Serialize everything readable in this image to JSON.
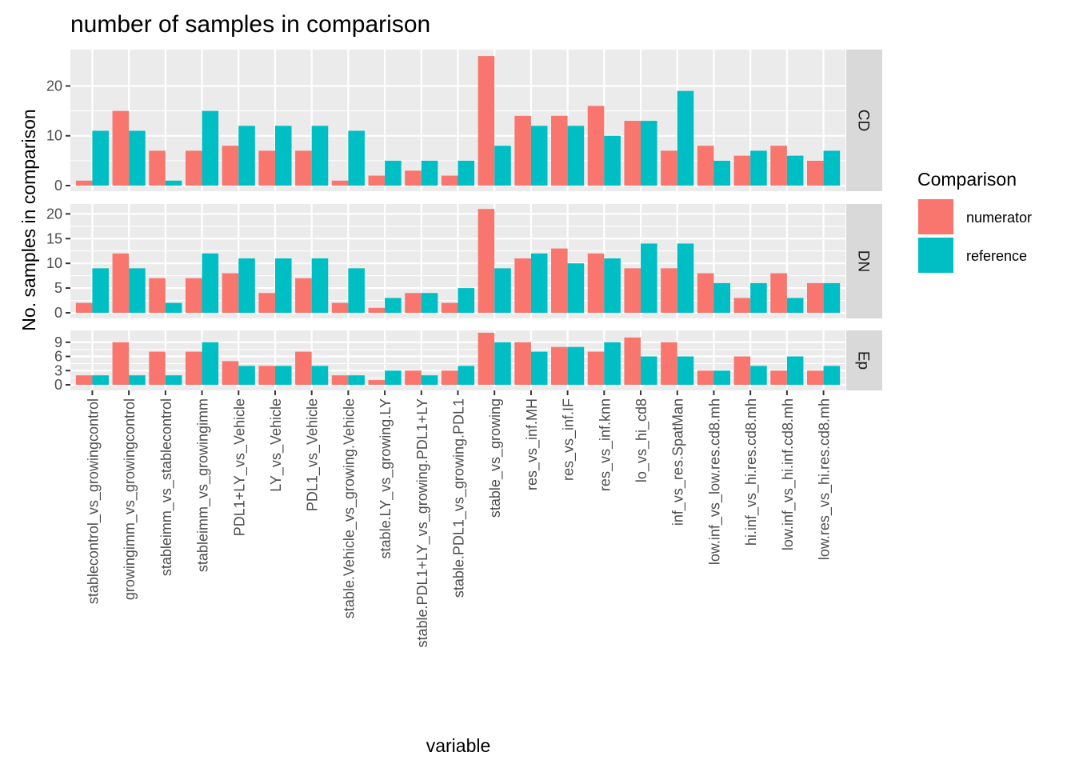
{
  "chart_data": {
    "type": "bar",
    "title": "number of samples in comparison",
    "xlabel": "variable",
    "ylabel": "No. samples in comparison",
    "legend": {
      "title": "Comparison",
      "placement": "right",
      "entries": [
        {
          "name": "numerator",
          "color": "#F8766D"
        },
        {
          "name": "reference",
          "color": "#00BFC4"
        }
      ]
    },
    "categories": [
      "stablecontrol_vs_growingcontrol",
      "growingimm_vs_growingcontrol",
      "stableimm_vs_stablecontrol",
      "stableimm_vs_growingimm",
      "PDL1+LY_vs_Vehicle",
      "LY_vs_Vehicle",
      "PDL1_vs_Vehicle",
      "stable.Vehicle_vs_growing.Vehicle",
      "stable.LY_vs_growing.LY",
      "stable.PDL1+LY_vs_growing.PDL1+LY",
      "stable.PDL1_vs_growing.PDL1",
      "stable_vs_growing",
      "res_vs_inf.MH",
      "res_vs_inf.IF",
      "res_vs_inf.knn",
      "lo_vs_hi_cd8",
      "inf_vs_res.SpatMan",
      "low.inf_vs_low.res.cd8.mh",
      "hi.inf_vs_hi.res.cd8.mh",
      "low.inf_vs_hi.inf.cd8.mh",
      "low.res_vs_hi.res.cd8.mh"
    ],
    "panels": [
      {
        "strip": "CD",
        "ylim": [
          0,
          27.3
        ],
        "yticks": [
          0,
          10,
          20
        ],
        "series": [
          {
            "name": "numerator",
            "values": [
              1,
              15,
              7,
              7,
              8,
              7,
              7,
              1,
              2,
              3,
              2,
              26,
              14,
              14,
              16,
              13,
              7,
              8,
              6,
              8,
              5
            ]
          },
          {
            "name": "reference",
            "values": [
              11,
              11,
              1,
              15,
              12,
              12,
              12,
              11,
              5,
              5,
              5,
              8,
              12,
              12,
              10,
              13,
              19,
              5,
              7,
              6,
              7
            ]
          }
        ]
      },
      {
        "strip": "DN",
        "ylim": [
          0,
          22
        ],
        "yticks": [
          0,
          5,
          10,
          15,
          20
        ],
        "series": [
          {
            "name": "numerator",
            "values": [
              2,
              12,
              7,
              7,
              8,
              4,
              7,
              2,
              1,
              4,
              2,
              21,
              11,
              13,
              12,
              9,
              9,
              8,
              3,
              8,
              6
            ]
          },
          {
            "name": "reference",
            "values": [
              9,
              9,
              2,
              12,
              11,
              11,
              11,
              9,
              3,
              4,
              5,
              9,
              12,
              10,
              11,
              14,
              14,
              6,
              6,
              3,
              6
            ]
          }
        ]
      },
      {
        "strip": "Ep",
        "ylim": [
          0,
          11.5
        ],
        "yticks": [
          0,
          3,
          6,
          9
        ],
        "series": [
          {
            "name": "numerator",
            "values": [
              2,
              9,
              7,
              7,
              5,
              4,
              7,
              2,
              1,
              3,
              3,
              11,
              9,
              8,
              7,
              10,
              9,
              3,
              6,
              3,
              3
            ]
          },
          {
            "name": "reference",
            "values": [
              2,
              2,
              2,
              9,
              4,
              4,
              4,
              2,
              3,
              2,
              4,
              9,
              7,
              8,
              9,
              6,
              6,
              3,
              4,
              6,
              4
            ]
          }
        ]
      }
    ],
    "grid": true,
    "panel_background": "#EBEBEB",
    "strip_background": "#D9D9D9"
  }
}
